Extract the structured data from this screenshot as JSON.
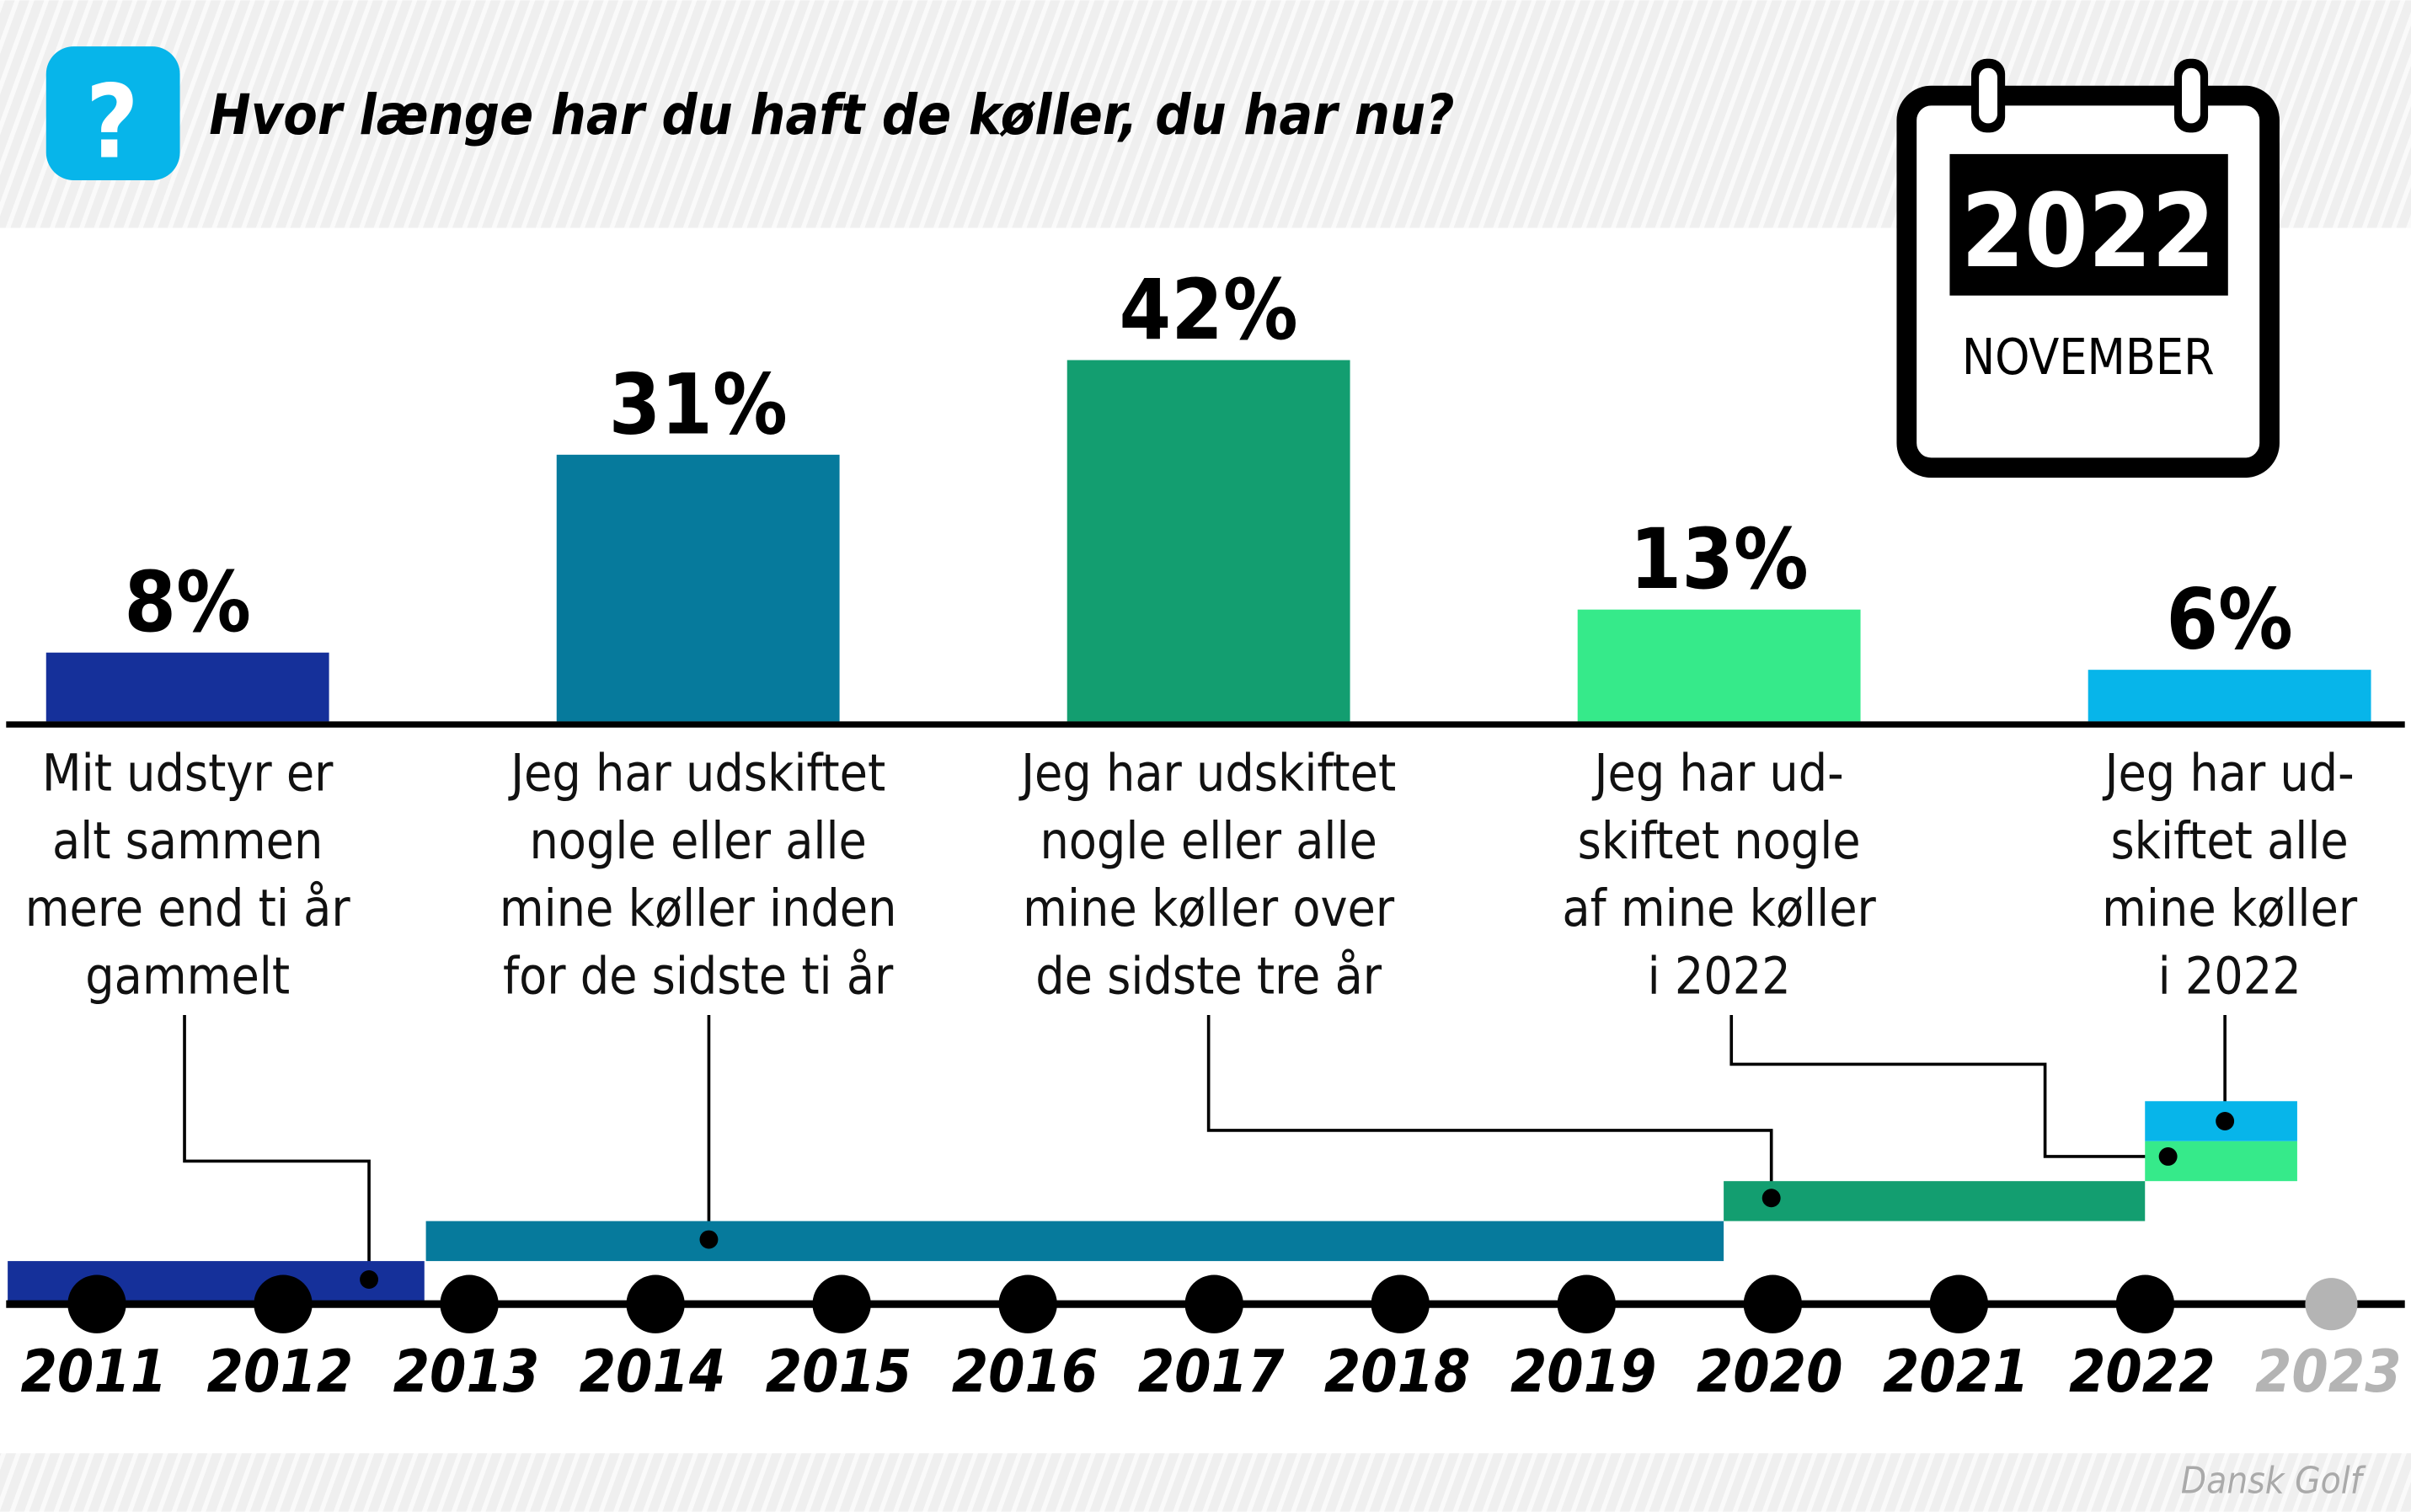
{
  "header": {
    "title": "Hvor længe har du haft de køller, du har nu?",
    "icon": "question-mark-icon",
    "icon_color": "#07b5ea"
  },
  "calendar": {
    "year": "2022",
    "month": "NOVEMBER",
    "icon": "calendar-icon"
  },
  "footer": {
    "credit": "Dansk Golf"
  },
  "chart_data": {
    "type": "bar",
    "title": "Hvor længe har du haft de køller, du har nu?",
    "categories": [
      [
        "Mit udstyr er",
        "alt sammen",
        "mere end ti år",
        "gammelt"
      ],
      [
        "Jeg har udskiftet",
        "nogle eller alle",
        "mine køller inden",
        "for de sidste ti år"
      ],
      [
        "Jeg har udskiftet",
        "nogle eller alle",
        "mine køller over",
        "de sidste tre år"
      ],
      [
        "Jeg har ud-",
        "skiftet nogle",
        "af mine køller",
        "i 2022"
      ],
      [
        "Jeg har ud-",
        "skiftet alle",
        "mine køller",
        "i 2022"
      ]
    ],
    "values": [
      8,
      31,
      42,
      13,
      6
    ],
    "value_labels": [
      "8%",
      "31%",
      "42%",
      "13%",
      "6%"
    ],
    "colors": [
      "#15309a",
      "#067a9c",
      "#139e70",
      "#36ea8a",
      "#07b5ea"
    ],
    "ylim": [
      0,
      42
    ],
    "grid": false,
    "timeline": {
      "years": [
        "2011",
        "2012",
        "2013",
        "2014",
        "2015",
        "2016",
        "2017",
        "2018",
        "2019",
        "2020",
        "2021",
        "2022",
        "2023"
      ],
      "future_year": "2023",
      "future_color": "#b4b4b4"
    }
  }
}
